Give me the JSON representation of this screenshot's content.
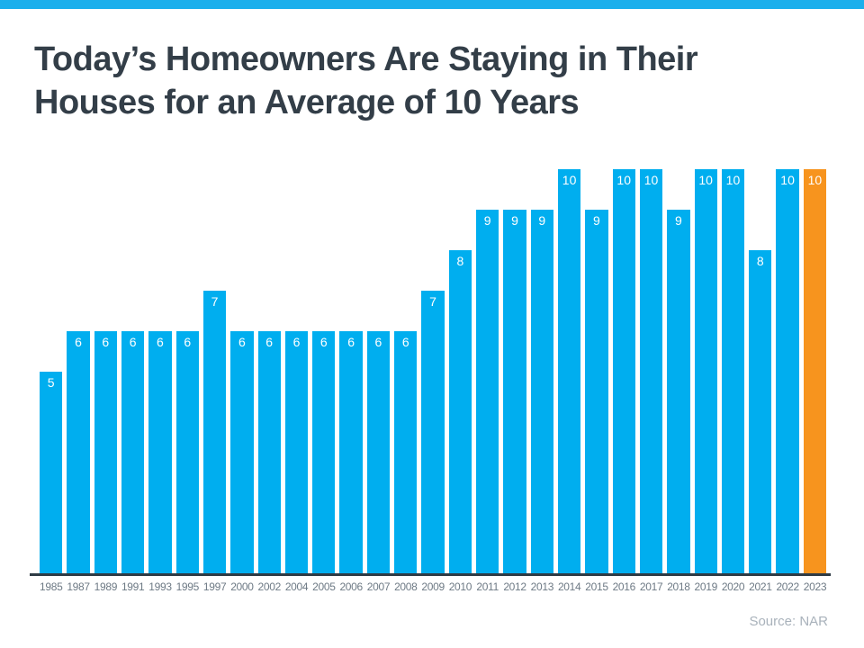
{
  "page": {
    "title_line1": "Today’s Homeowners Are Staying in Their",
    "title_line2": "Houses for an Average of 10 Years",
    "source": "Source: NAR"
  },
  "colors": {
    "top_strip": "#1BAFEC",
    "title_text": "#333E48",
    "bar": "#00AEEF",
    "highlight": "#F7941E",
    "value_label": "#FFFFFF",
    "axis_line": "#2E3B45",
    "tick_label": "#6E7A85",
    "source_text": "#A9B2BB",
    "background": "#FFFFFF"
  },
  "chart_data": {
    "type": "bar",
    "title": "Today’s Homeowners Are Staying in Their Houses for an Average of 10 Years",
    "categories": [
      "1985",
      "1987",
      "1989",
      "1991",
      "1993",
      "1995",
      "1997",
      "2000",
      "2002",
      "2004",
      "2005",
      "2006",
      "2007",
      "2008",
      "2009",
      "2010",
      "2011",
      "2012",
      "2013",
      "2014",
      "2015",
      "2016",
      "2017",
      "2018",
      "2019",
      "2020",
      "2021",
      "2022",
      "2023"
    ],
    "values": [
      5,
      6,
      6,
      6,
      6,
      6,
      7,
      6,
      6,
      6,
      6,
      6,
      6,
      6,
      7,
      8,
      9,
      9,
      9,
      10,
      9,
      10,
      10,
      9,
      10,
      10,
      8,
      10,
      10
    ],
    "xlabel": "",
    "ylabel": "",
    "ylim": [
      0,
      10
    ],
    "grid": false,
    "legend": false,
    "value_labels_shown": true,
    "bar_color": "#00AEEF",
    "highlight_index": 28,
    "highlight_color": "#F7941E",
    "source": "Source: NAR"
  }
}
